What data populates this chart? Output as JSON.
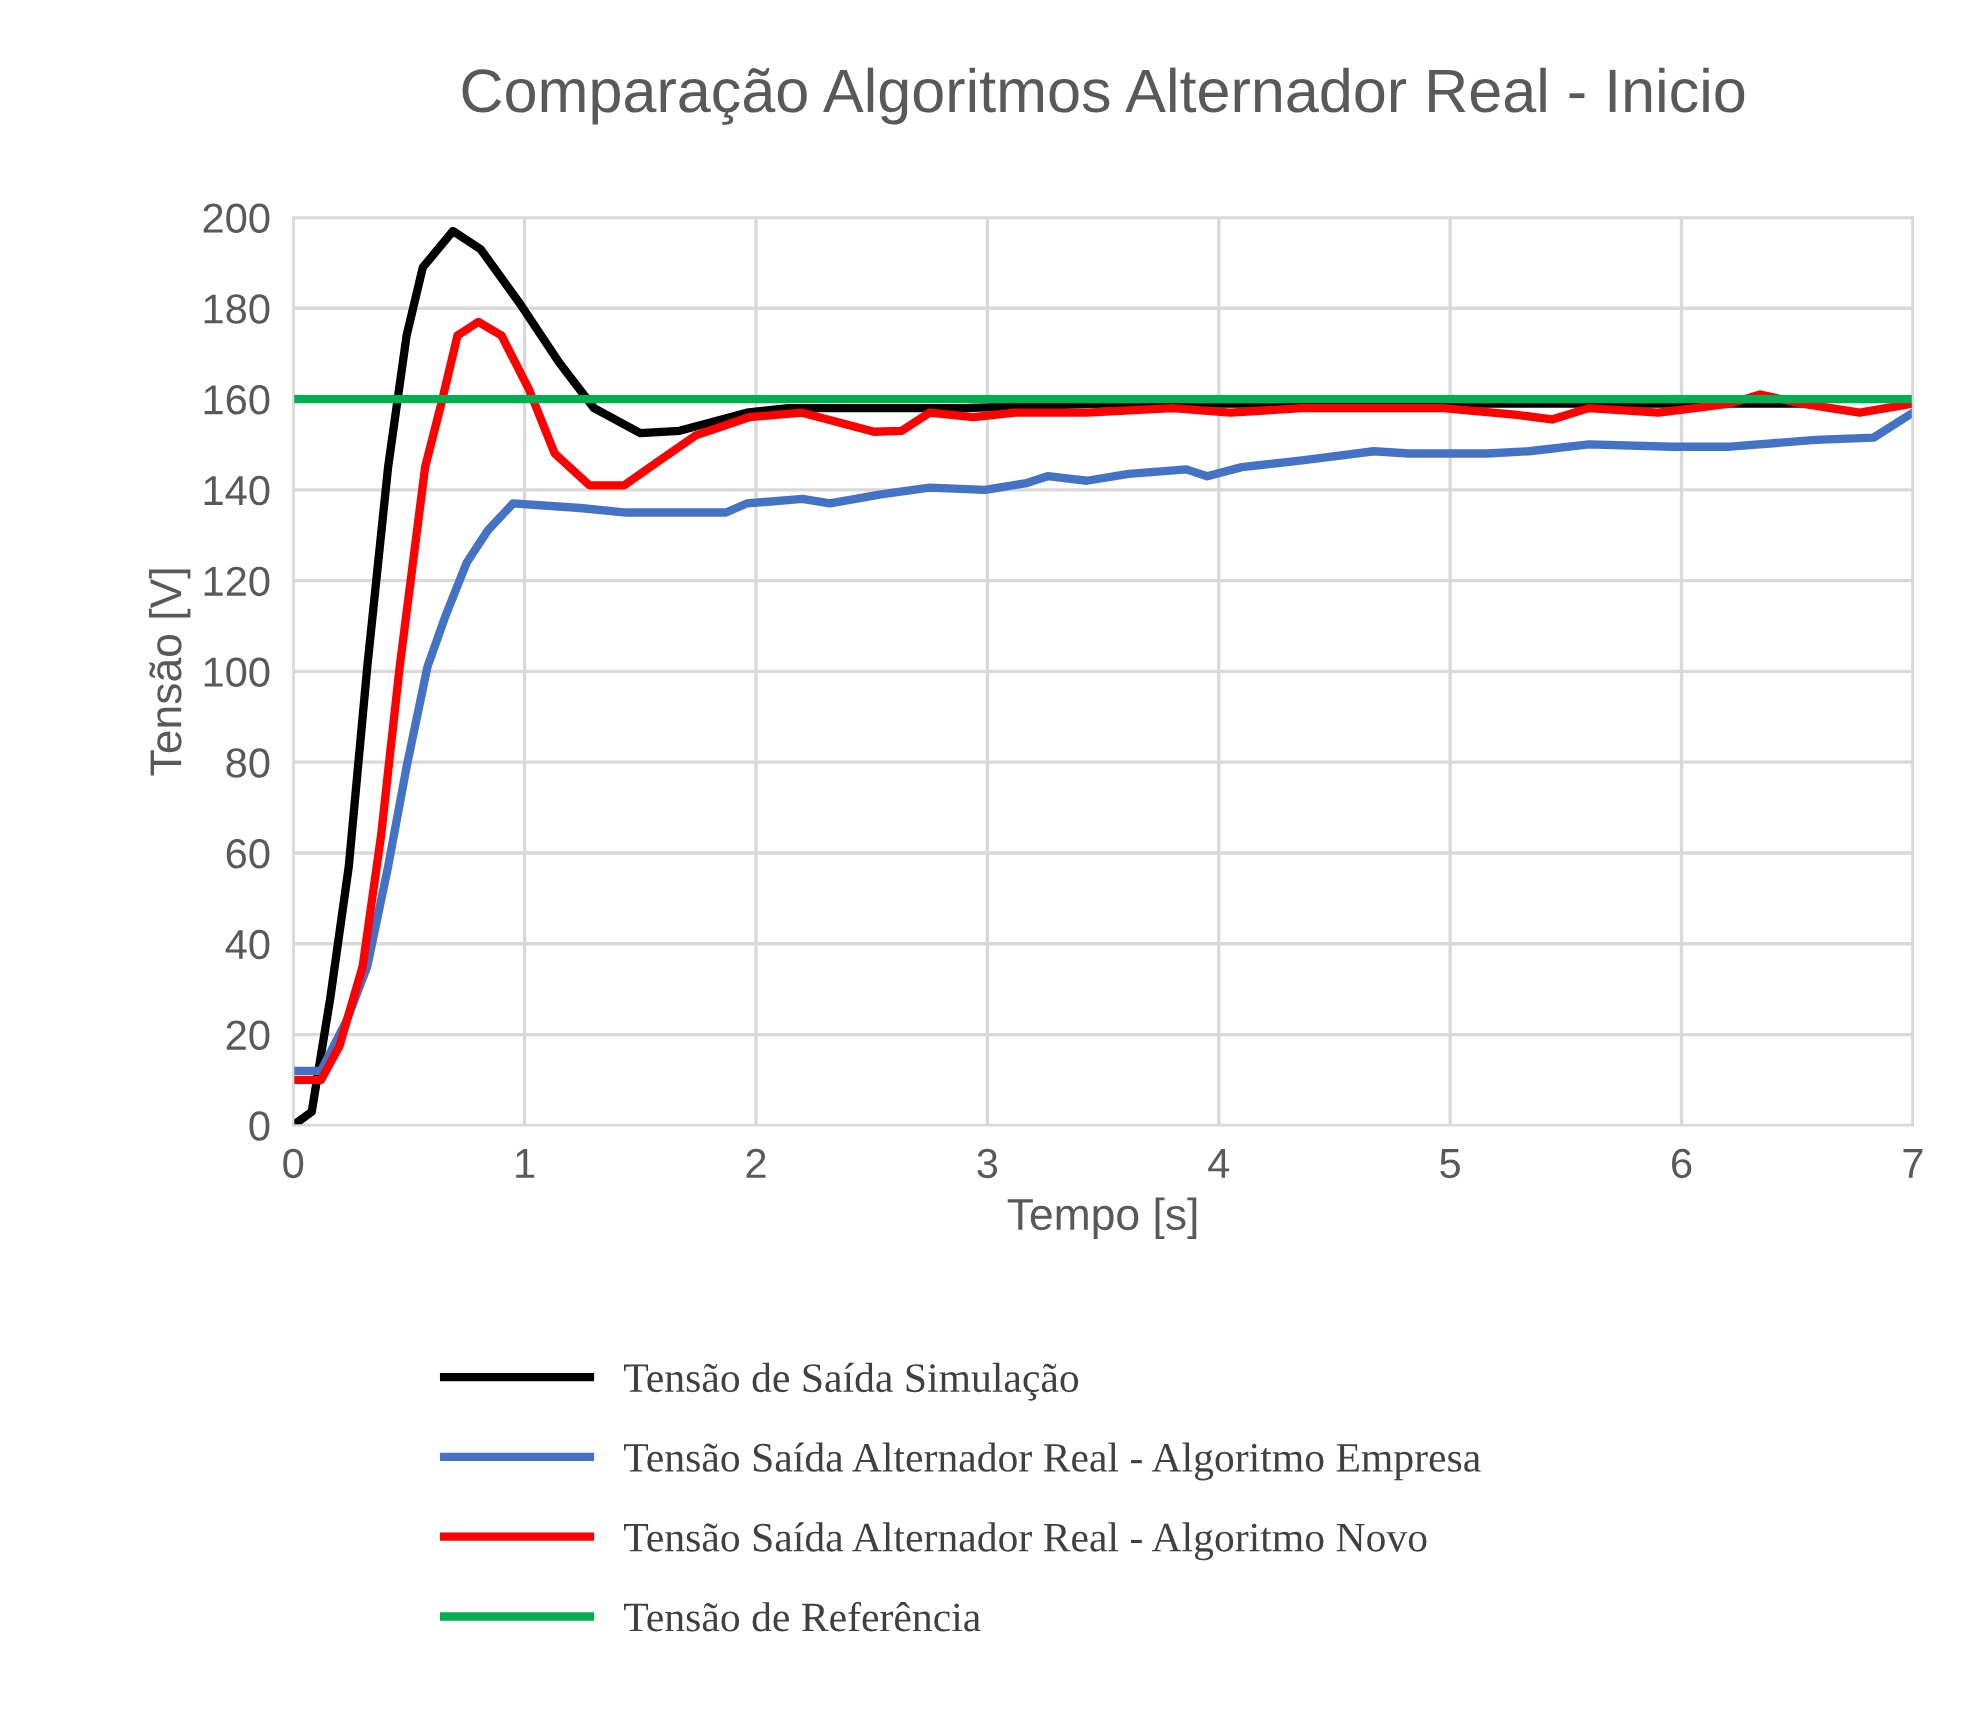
{
  "chart_data": {
    "type": "line",
    "title": "Comparação Algoritmos Alternador Real - Inicio",
    "xlabel": "Tempo [s]",
    "ylabel": "Tensão [V]",
    "xlim": [
      0,
      7
    ],
    "xticks": [
      0,
      1,
      2,
      3,
      4,
      5,
      6,
      7
    ],
    "ylim": [
      0,
      200
    ],
    "yticks": [
      0,
      20,
      40,
      60,
      80,
      100,
      120,
      140,
      160,
      180,
      200
    ],
    "grid": true,
    "legend": "bottom",
    "marker": "none",
    "line_style": "solid",
    "series": [
      {
        "name": "Tensão de Saída Simulação",
        "color": "#000000",
        "x": [
          0,
          0.08,
          0.16,
          0.24,
          0.32,
          0.41,
          0.49,
          0.56,
          0.69,
          0.81,
          0.98,
          1.15,
          1.3,
          1.5,
          1.67,
          1.96,
          2.14,
          2.5,
          2.9,
          3.5,
          4.5,
          5.5,
          6.5
        ],
        "values": [
          0,
          3,
          28,
          57,
          101,
          145,
          174,
          189,
          197,
          193,
          181,
          168,
          158,
          152.5,
          153,
          157,
          158,
          158,
          158,
          159,
          159,
          159,
          159
        ]
      },
      {
        "name": "Tensão Saída Alternador Real - Algoritmo Empresa",
        "color": "#4472c4",
        "x": [
          0,
          0.12,
          0.23,
          0.32,
          0.41,
          0.49,
          0.58,
          0.66,
          0.75,
          0.84,
          0.95,
          1.24,
          1.44,
          1.87,
          1.96,
          2.2,
          2.32,
          2.54,
          2.75,
          2.99,
          3.17,
          3.26,
          3.43,
          3.61,
          3.86,
          3.95,
          4.1,
          4.36,
          4.67,
          4.82,
          5.16,
          5.34,
          5.6,
          5.96,
          6.21,
          6.58,
          6.83,
          7.0
        ],
        "values": [
          12,
          12,
          23,
          35,
          57,
          79,
          101,
          112.5,
          124,
          131,
          137,
          136,
          135,
          135,
          137,
          138,
          137,
          139,
          140.5,
          140,
          141.5,
          143,
          142,
          143.5,
          144.5,
          143,
          145,
          146.5,
          148.5,
          148,
          148,
          148.5,
          150,
          149.5,
          149.5,
          151,
          151.5,
          157
        ]
      },
      {
        "name": "Tensão Saída Alternador Real - Algoritmo Novo",
        "color": "#ff0000",
        "x": [
          0,
          0.12,
          0.2,
          0.3,
          0.38,
          0.46,
          0.57,
          0.64,
          0.71,
          0.8,
          0.9,
          1.02,
          1.13,
          1.28,
          1.43,
          1.57,
          1.74,
          1.97,
          2.2,
          2.51,
          2.63,
          2.75,
          2.94,
          3.12,
          3.43,
          3.8,
          4.05,
          4.36,
          4.97,
          5.29,
          5.44,
          5.6,
          5.9,
          6.21,
          6.34,
          6.52,
          6.77,
          7.0
        ],
        "values": [
          10,
          10,
          17.5,
          35,
          64,
          101,
          145,
          159,
          174,
          177,
          174,
          162,
          148,
          141,
          141,
          146,
          152,
          156,
          157,
          152.8,
          153,
          157,
          156,
          157,
          157,
          158,
          157,
          158,
          158,
          156.5,
          155.5,
          158,
          157,
          159,
          161,
          159,
          157,
          159
        ]
      },
      {
        "name": "Tensão de Referência",
        "color": "#00b050",
        "x": [
          0,
          7
        ],
        "values": [
          160,
          160
        ]
      }
    ]
  }
}
